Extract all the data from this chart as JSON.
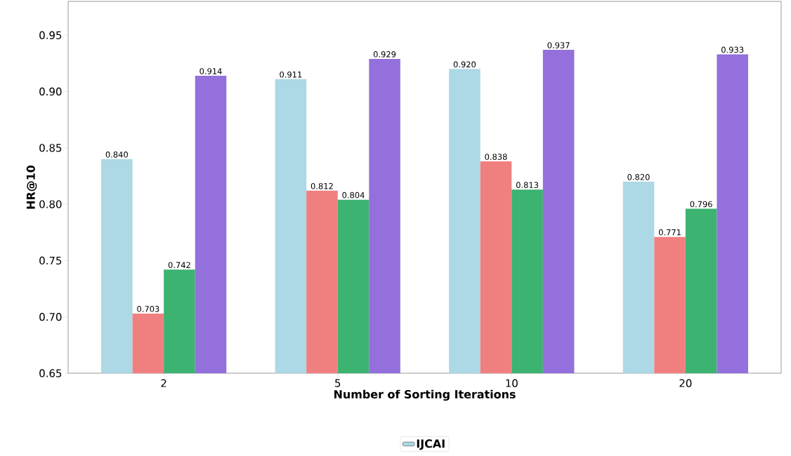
{
  "chart_data": {
    "type": "bar",
    "xlabel": "Number of Sorting Iterations",
    "ylabel": "HR@10",
    "categories": [
      "2",
      "5",
      "10",
      "20"
    ],
    "series": [
      {
        "name": "IJCAI",
        "color": "#add8e6",
        "values": [
          0.84,
          0.911,
          0.92,
          0.82
        ],
        "value_labels": [
          "0.840",
          "0.911",
          "0.920",
          "0.820"
        ]
      },
      {
        "color": "#f08080",
        "values": [
          0.703,
          0.812,
          0.838,
          0.771
        ],
        "value_labels": [
          "0.703",
          "0.812",
          "0.838",
          "0.771"
        ]
      },
      {
        "color": "#3cb371",
        "values": [
          0.742,
          0.804,
          0.813,
          0.796
        ],
        "value_labels": [
          "0.742",
          "0.804",
          "0.813",
          "0.796"
        ]
      },
      {
        "color": "#9370db",
        "values": [
          0.914,
          0.929,
          0.937,
          0.933
        ],
        "value_labels": [
          "0.914",
          "0.929",
          "0.937",
          "0.933"
        ]
      }
    ],
    "ylim": [
      0.65,
      0.98
    ],
    "yticks": [
      0.65,
      {
        "value": 0.7,
        "label": "0.70"
      },
      0.75,
      {
        "value": 0.8,
        "label": "0.80"
      },
      0.85,
      {
        "value": 0.9,
        "label": "0.90"
      },
      0.95
    ],
    "legend": "bottom",
    "grid": false
  }
}
